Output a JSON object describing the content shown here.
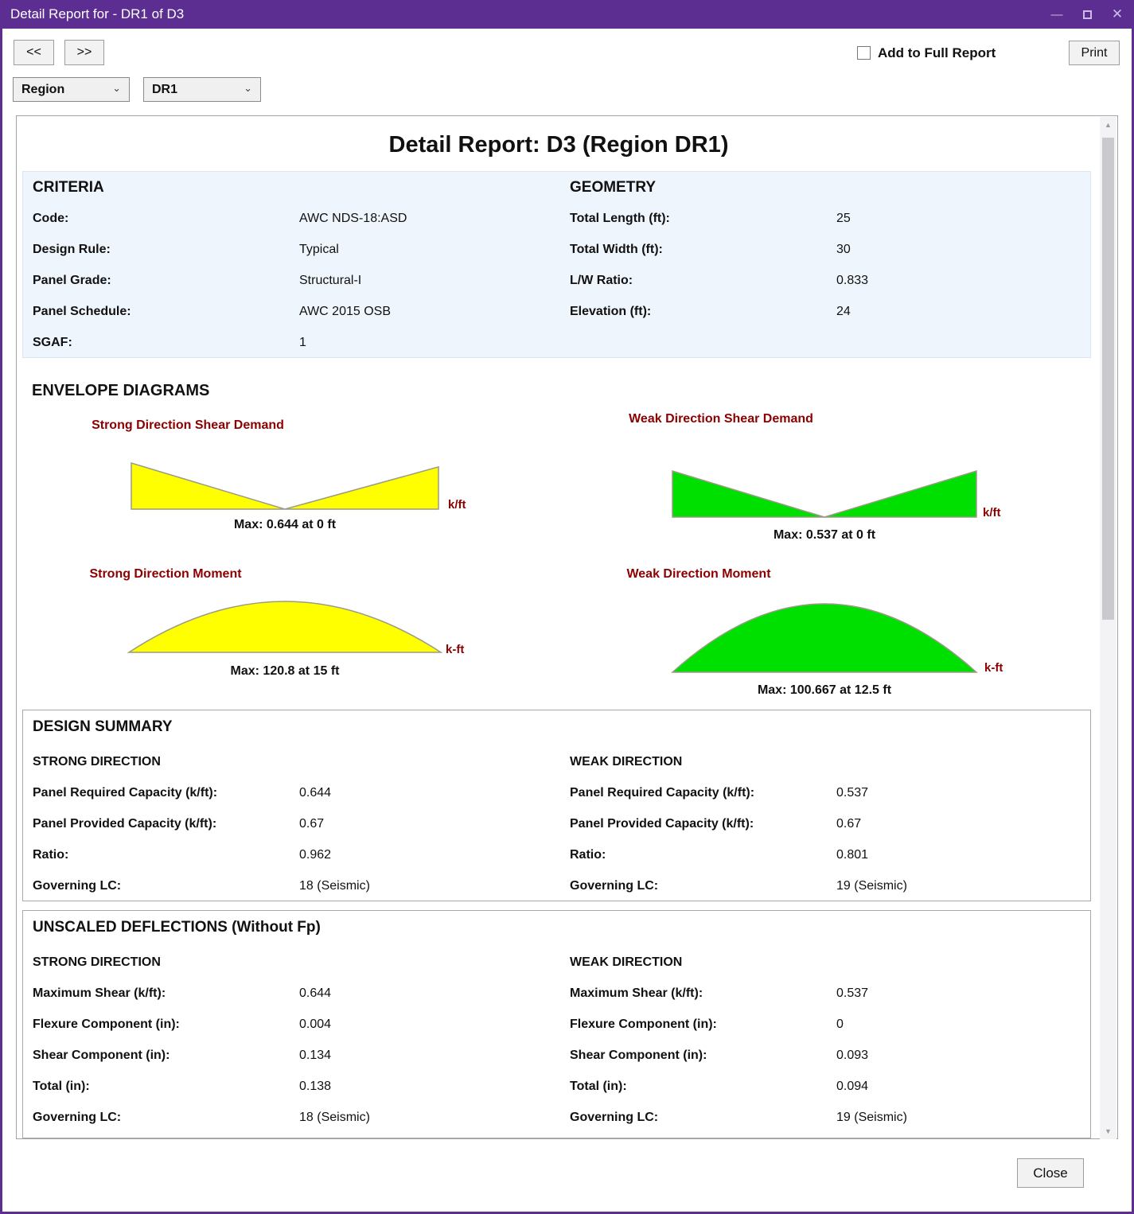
{
  "window": {
    "title": "Detail Report for - DR1 of D3",
    "minimize_glyph": "—",
    "close_glyph": "✕"
  },
  "toolbar": {
    "prev_label": "<<",
    "next_label": ">>",
    "add_to_full_report_label": "Add to Full Report",
    "print_label": "Print",
    "region_select_value": "Region",
    "item_select_value": "DR1",
    "select_chevron_glyph": "⌄"
  },
  "report": {
    "title": "Detail Report: D3 (Region DR1)",
    "criteria": {
      "heading": "CRITERIA",
      "rows": [
        {
          "label": "Code:",
          "value": "AWC NDS-18:ASD"
        },
        {
          "label": "Design Rule:",
          "value": "Typical"
        },
        {
          "label": "Panel Grade:",
          "value": "Structural-I"
        },
        {
          "label": "Panel Schedule:",
          "value": "AWC 2015 OSB"
        },
        {
          "label": "SGAF:",
          "value": "1"
        }
      ]
    },
    "geometry": {
      "heading": "GEOMETRY",
      "rows": [
        {
          "label": "Total Length (ft):",
          "value": "25"
        },
        {
          "label": "Total Width (ft):",
          "value": "30"
        },
        {
          "label": "L/W Ratio:",
          "value": "0.833"
        },
        {
          "label": "Elevation (ft):",
          "value": "24"
        }
      ]
    },
    "envelope_heading": "ENVELOPE DIAGRAMS",
    "design_summary": {
      "heading": "DESIGN SUMMARY",
      "strong": {
        "heading": "STRONG DIRECTION",
        "rows": [
          {
            "label": "Panel Required Capacity (k/ft):",
            "value": "0.644"
          },
          {
            "label": "Panel Provided Capacity (k/ft):",
            "value": "0.67"
          },
          {
            "label": "Ratio:",
            "value": "0.962"
          },
          {
            "label": "Governing LC:",
            "value": "18 (Seismic)"
          }
        ]
      },
      "weak": {
        "heading": "WEAK DIRECTION",
        "rows": [
          {
            "label": "Panel Required Capacity (k/ft):",
            "value": "0.537"
          },
          {
            "label": "Panel Provided Capacity (k/ft):",
            "value": "0.67"
          },
          {
            "label": "Ratio:",
            "value": "0.801"
          },
          {
            "label": "Governing LC:",
            "value": "19 (Seismic)"
          }
        ]
      }
    },
    "deflections": {
      "heading": "UNSCALED DEFLECTIONS (Without Fp)",
      "strong": {
        "heading": "STRONG DIRECTION",
        "rows": [
          {
            "label": "Maximum Shear (k/ft):",
            "value": "0.644"
          },
          {
            "label": "Flexure Component (in):",
            "value": "0.004"
          },
          {
            "label": "Shear Component (in):",
            "value": "0.134"
          },
          {
            "label": "Total (in):",
            "value": "0.138"
          },
          {
            "label": "Governing LC:",
            "value": "18 (Seismic)"
          }
        ]
      },
      "weak": {
        "heading": "WEAK DIRECTION",
        "rows": [
          {
            "label": "Maximum Shear (k/ft):",
            "value": "0.537"
          },
          {
            "label": "Flexure Component (in):",
            "value": "0"
          },
          {
            "label": "Shear Component (in):",
            "value": "0.093"
          },
          {
            "label": "Total (in):",
            "value": "0.094"
          },
          {
            "label": "Governing LC:",
            "value": "19 (Seismic)"
          }
        ]
      }
    }
  },
  "chart_data": [
    {
      "type": "area",
      "subtype": "shear",
      "title": "Strong Direction Shear Demand",
      "unit": "k/ft",
      "max_label": "Max: 0.644 at 0 ft",
      "fill": "#FFFF00",
      "stroke": "#9b9b86",
      "x_ft": [
        0,
        15,
        30
      ],
      "values": [
        0.644,
        0,
        0.59
      ],
      "max": {
        "value": 0.644,
        "at_ft": 0
      }
    },
    {
      "type": "area",
      "subtype": "shear",
      "title": "Weak Direction Shear Demand",
      "unit": "k/ft",
      "max_label": "Max: 0.537 at 0 ft",
      "fill": "#00E000",
      "stroke": "#9b9b86",
      "x_ft": [
        0,
        12.5,
        25
      ],
      "values": [
        0.537,
        0,
        0.537
      ],
      "max": {
        "value": 0.537,
        "at_ft": 0
      }
    },
    {
      "type": "area",
      "subtype": "moment",
      "title": "Strong Direction Moment",
      "unit": "k-ft",
      "max_label": "Max: 120.8 at 15 ft",
      "fill": "#FFFF00",
      "stroke": "#9b9b86",
      "x_ft": [
        0,
        15,
        30
      ],
      "values": [
        0,
        120.8,
        0
      ],
      "max": {
        "value": 120.8,
        "at_ft": 15
      }
    },
    {
      "type": "area",
      "subtype": "moment",
      "title": "Weak Direction Moment",
      "unit": "k-ft",
      "max_label": "Max: 100.667 at 12.5 ft",
      "fill": "#00E000",
      "stroke": "#9b9b86",
      "x_ft": [
        0,
        12.5,
        25
      ],
      "values": [
        0,
        100.667,
        0
      ],
      "max": {
        "value": 100.667,
        "at_ft": 12.5
      }
    }
  ],
  "scrollbar": {
    "up_glyph": "▲",
    "down_glyph": "▼"
  },
  "footer": {
    "close_label": "Close"
  }
}
